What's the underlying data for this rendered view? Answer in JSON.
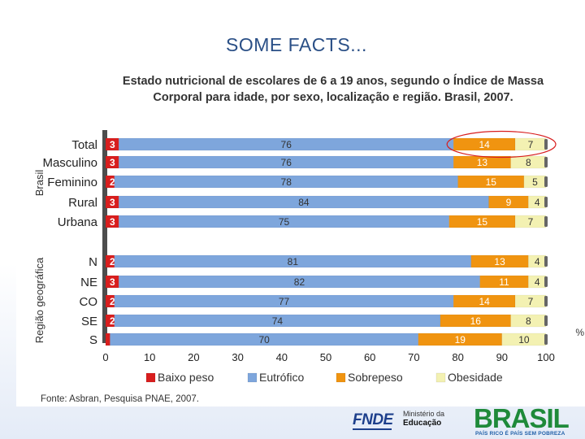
{
  "slide": {
    "title": "SOME FACTS..."
  },
  "chart_data": {
    "type": "bar",
    "orientation": "horizontal",
    "stacked": true,
    "title": "Estado nutricional de escolares de 6 a 19 anos, segundo o Índice de Massa Corporal para idade, por sexo, localização e região. Brasil, 2007.",
    "title_lines": [
      "Estado nutricional de escolares de 6 a 19 anos, segundo o Índice de Massa",
      "Corporal para idade, por sexo, localização e região. Brasil, 2007."
    ],
    "groups": [
      {
        "label": "Brasil",
        "categories": [
          "Total",
          "Masculino",
          "Feminino",
          "Rural",
          "Urbana"
        ]
      },
      {
        "label": "Região geográfica",
        "categories": [
          "N",
          "NE",
          "CO",
          "SE",
          "S"
        ]
      }
    ],
    "categories": [
      "Total",
      "Masculino",
      "Feminino",
      "Rural",
      "Urbana",
      "N",
      "NE",
      "CO",
      "SE",
      "S"
    ],
    "series": [
      {
        "name": "Baixo peso",
        "color": "#d81e1e",
        "values": [
          3,
          3,
          2,
          3,
          3,
          2,
          3,
          2,
          2,
          1
        ]
      },
      {
        "name": "Eutrófico",
        "color": "#7ea6dc",
        "values": [
          76,
          76,
          78,
          84,
          75,
          81,
          82,
          77,
          74,
          70
        ]
      },
      {
        "name": "Sobrepeso",
        "color": "#f09410",
        "values": [
          14,
          13,
          15,
          9,
          15,
          13,
          11,
          14,
          16,
          19
        ]
      },
      {
        "name": "Obesidade",
        "color": "#f3f1b2",
        "values": [
          7,
          8,
          5,
          4,
          7,
          4,
          4,
          7,
          8,
          10
        ]
      }
    ],
    "xlim": [
      0,
      100
    ],
    "xticks": [
      0,
      10,
      20,
      30,
      40,
      50,
      60,
      70,
      80,
      90,
      100
    ],
    "xunit": "%",
    "legend_position": "bottom",
    "highlight": {
      "category": "Total",
      "series": [
        "Sobrepeso",
        "Obesidade"
      ],
      "color": "#d81e1e"
    },
    "source": "Fonte: Asbran, Pesquisa PNAE, 2007."
  },
  "footer": {
    "fnde_logo_text": "FNDE",
    "ministry_line1": "Ministério da",
    "ministry_line2": "Educação",
    "brasil_logo_text": "BRASIL",
    "brasil_tagline": "PAÍS RICO É PAÍS SEM POBREZA"
  }
}
